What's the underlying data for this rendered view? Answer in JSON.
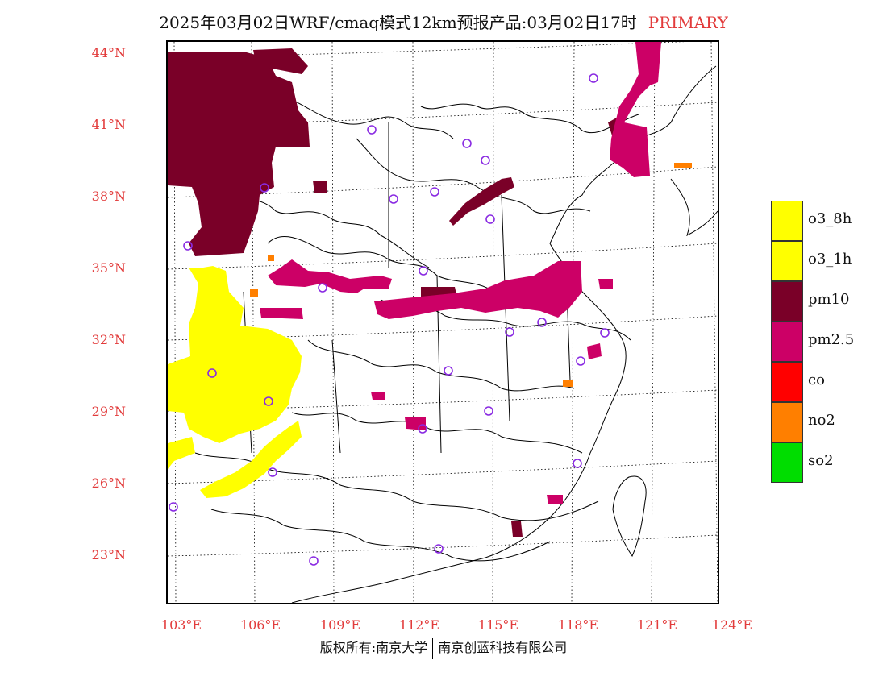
{
  "title": {
    "main": "2025年03月02日WRF/cmaq模式12km预报产品:03月02日17时",
    "tag": "PRIMARY"
  },
  "axes": {
    "lat_labels": [
      "44°N",
      "41°N",
      "38°N",
      "35°N",
      "32°N",
      "29°N",
      "26°N",
      "23°N"
    ],
    "lon_labels": [
      "103°E",
      "106°E",
      "109°E",
      "112°E",
      "115°E",
      "118°E",
      "121°E",
      "124°E"
    ]
  },
  "legend": [
    {
      "label": "o3_8h",
      "color": "#ffff00"
    },
    {
      "label": "o3_1h",
      "color": "#ffff00"
    },
    {
      "label": "pm10",
      "color": "#7a0028"
    },
    {
      "label": "pm2.5",
      "color": "#cc0066"
    },
    {
      "label": "co",
      "color": "#ff0000"
    },
    {
      "label": "no2",
      "color": "#ff7f00"
    },
    {
      "label": "so2",
      "color": "#00dd00"
    }
  ],
  "footer": {
    "left": "版权所有:南京大学",
    "right": "南京创蓝科技有限公司"
  }
}
